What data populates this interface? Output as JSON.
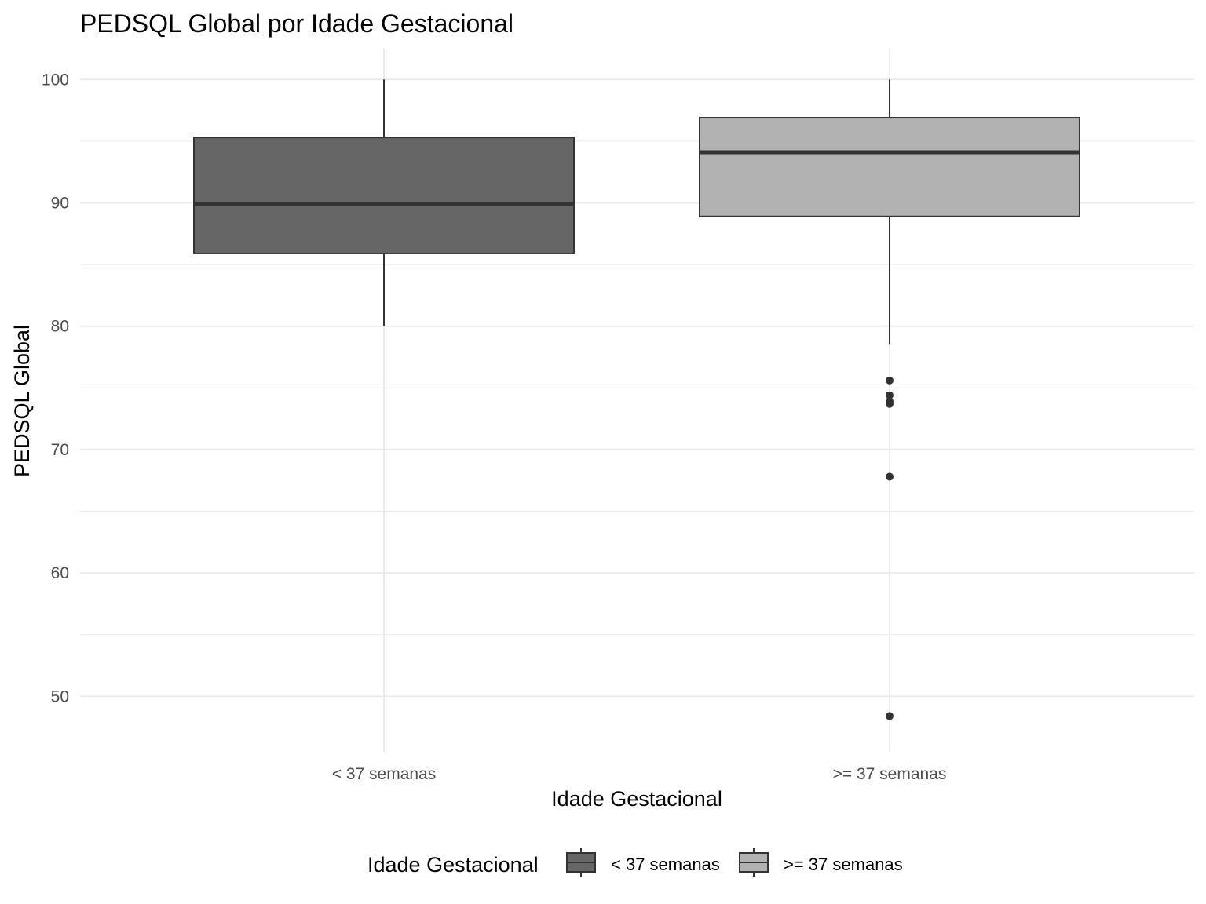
{
  "chart_data": {
    "type": "boxplot",
    "title": "PEDSQL Global por Idade Gestacional",
    "xlabel": "Idade Gestacional",
    "ylabel": "PEDSQL Global",
    "categories": [
      "< 37 semanas",
      ">= 37 semanas"
    ],
    "ylim": [
      45.5,
      102.5
    ],
    "yticks": [
      50,
      60,
      70,
      80,
      90,
      100
    ],
    "grid": true,
    "legend": {
      "title": "Idade Gestacional",
      "position": "bottom",
      "entries": [
        "< 37 semanas",
        ">= 37 semanas"
      ]
    },
    "series": [
      {
        "category": "< 37 semanas",
        "fill": "#666666",
        "whisker_low": 80.0,
        "q1": 85.9,
        "median": 89.9,
        "q3": 95.3,
        "whisker_high": 100.0,
        "outliers": []
      },
      {
        "category": ">= 37 semanas",
        "fill": "#b2b2b2",
        "whisker_low": 78.5,
        "q1": 88.9,
        "median": 94.1,
        "q3": 96.9,
        "whisker_high": 100.0,
        "outliers": [
          75.6,
          74.4,
          73.9,
          73.7,
          67.8,
          48.4
        ]
      }
    ]
  },
  "colors": {
    "grid": "#ebebeb",
    "box_outline": "#333333",
    "outlier": "#333333"
  }
}
